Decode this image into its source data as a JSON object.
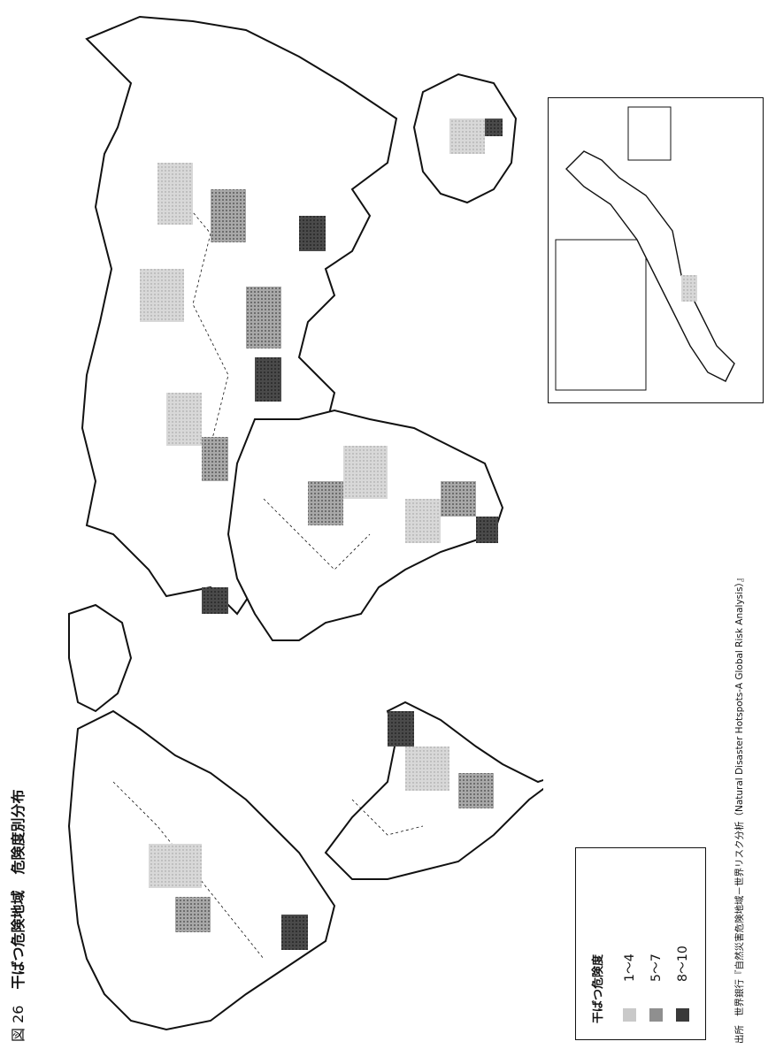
{
  "title": {
    "figure_number": "図 26",
    "main": "干ばつ危険地域",
    "sub": "危険度別分布"
  },
  "legend": {
    "title": "干ばつ危険度",
    "items": [
      {
        "label": "1～4",
        "level": "low",
        "color": "#c9c9c9"
      },
      {
        "label": "5～7",
        "level": "medium",
        "color": "#8f8f8f"
      },
      {
        "label": "8～10",
        "level": "high",
        "color": "#3a3a3a"
      }
    ]
  },
  "source": {
    "prefix": "出所",
    "text": "世界銀行『自然災害危険地域－世界リスク分析（Natural Disaster Hotspots-A Global Risk Analysis）』"
  },
  "colors": {
    "outline": "#111111",
    "low": "#c9c9c9",
    "medium": "#8f8f8f",
    "high": "#3a3a3a",
    "background": "#ffffff"
  },
  "icons": [
    "japan-inset-map",
    "world-map"
  ]
}
